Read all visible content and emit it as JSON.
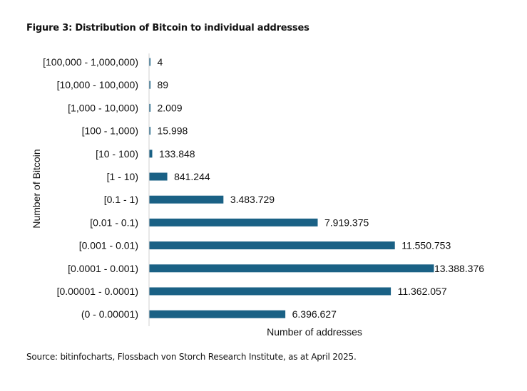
{
  "chart_data": {
    "type": "bar",
    "orientation": "horizontal",
    "title": "Figure 3: Distribution of Bitcoin to individual addresses",
    "xlabel": "Number of addresses",
    "ylabel": "Number of Bitcoin",
    "categories": [
      "[100,000 - 1,000,000)",
      "[10,000 - 100,000)",
      "[1,000 - 10,000)",
      "[100 - 1,000)",
      "[10 - 100)",
      "[1 - 10)",
      "[0.1 - 1)",
      "[0.01 - 0.1)",
      "[0.001 - 0.01)",
      "[0.0001 - 0.001)",
      "[0.00001 - 0.0001)",
      "(0 - 0.00001)"
    ],
    "values": [
      4,
      89,
      2009,
      15998,
      133848,
      841244,
      3483729,
      7919375,
      11550753,
      13388376,
      11362057,
      6396627
    ],
    "data_labels": [
      "4",
      "89",
      "2.009",
      "15.998",
      "133.848",
      "841.244",
      "3.483.729",
      "7.919.375",
      "11.550.753",
      "13.388.376",
      "11.362.057",
      "6.396.627"
    ],
    "grid": false,
    "legend": "none",
    "bar_color": "#1a6185"
  },
  "source": "Source: bitinfocharts, Flossbach von Storch Research Institute, as at April 2025."
}
